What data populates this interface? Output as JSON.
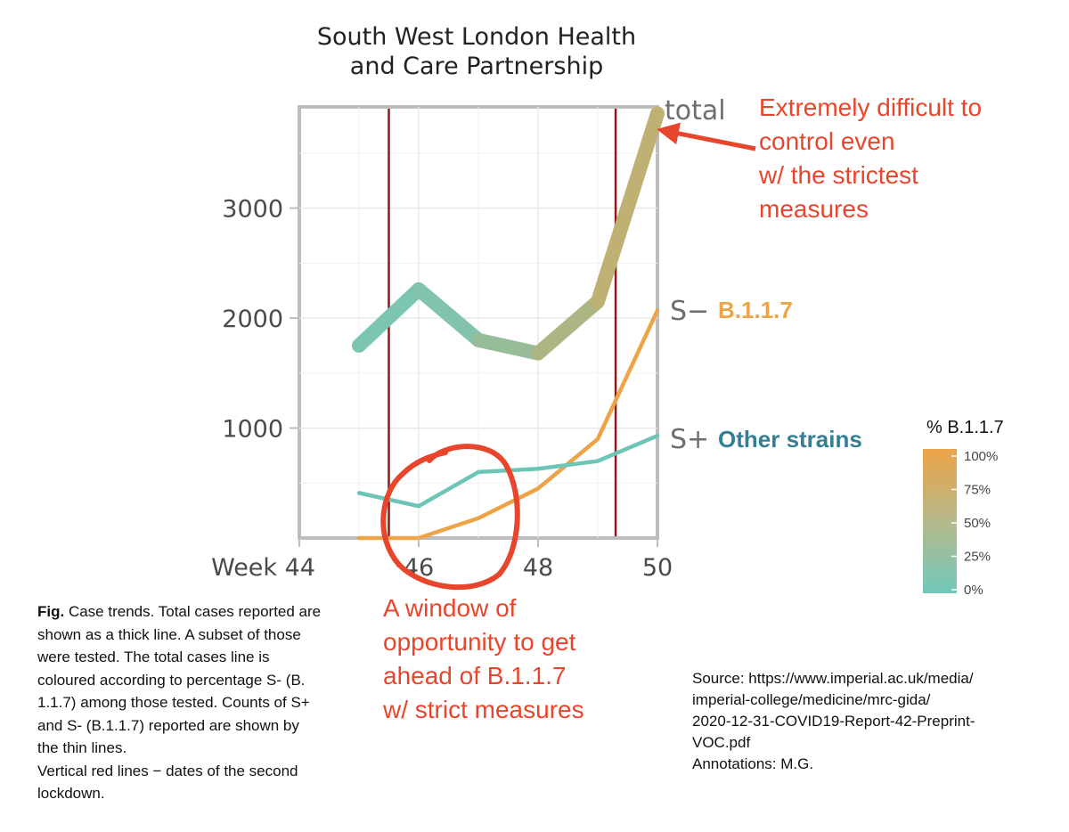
{
  "chart_data": {
    "type": "line",
    "title_lines": [
      "South West London Health",
      "and Care Partnership"
    ],
    "x": [
      45,
      46,
      47,
      48,
      49,
      50
    ],
    "x_ticks": [
      {
        "value": 44,
        "label": "Week 44"
      },
      {
        "value": 46,
        "label": "46"
      },
      {
        "value": 48,
        "label": "48"
      },
      {
        "value": 50,
        "label": "50"
      }
    ],
    "xlim": [
      44,
      50
    ],
    "y_ticks": [
      {
        "value": 1000,
        "label": "1000"
      },
      {
        "value": 2000,
        "label": "2000"
      },
      {
        "value": 3000,
        "label": "3000"
      }
    ],
    "ylim": [
      0,
      3920
    ],
    "grid": true,
    "series": [
      {
        "name": "total",
        "values": [
          1750,
          2260,
          1800,
          1680,
          2150,
          3860
        ],
        "pct_b117": [
          0.1,
          0.05,
          0.2,
          0.4,
          0.55,
          0.7
        ]
      },
      {
        "name": "S−",
        "values": [
          0,
          0,
          180,
          450,
          900,
          2070
        ],
        "color": "#eda347"
      },
      {
        "name": "S+",
        "values": [
          410,
          290,
          600,
          630,
          700,
          930
        ],
        "color": "#6cc5b6"
      }
    ],
    "lockdown_weeks": [
      45.5,
      49.3
    ],
    "legend": {
      "title": "% B.1.1.7",
      "ticks": [
        "100%",
        "75%",
        "50%",
        "25%",
        "0%"
      ],
      "color_low": "#72c8bb",
      "color_high": "#eda347",
      "placement": "right"
    }
  },
  "annotations": {
    "top_right_lines": [
      "Extremely difficult to",
      "control even",
      "w/ the strictest",
      "measures"
    ],
    "s_minus_label": "B.1.1.7",
    "s_plus_label": "Other strains",
    "window_lines": [
      "A window of",
      "opportunity to get",
      "ahead of B.1.1.7",
      "w/ strict measures"
    ]
  },
  "caption": {
    "fig_label": "Fig.",
    "line1": " Case trends. Total cases",
    "rest": "reported are shown as a thick line. A subset of those were tested. The total cases line is coloured according to percentage S- (B. 1.1.7) among those tested. Counts of S+ and S- (B.1.1.7) reported are shown by the thin lines.",
    "second": "Vertical red lines − dates of the second lockdown."
  },
  "source": {
    "lines": [
      "Source: https://www.imperial.ac.uk/media/",
      "imperial-college/medicine/mrc-gida/",
      "2020-12-31-COVID19-Report-42-Preprint-",
      "VOC.pdf",
      "Annotations: M.G."
    ]
  },
  "colors": {
    "annotation_red": "#e8462c",
    "lockdown_line": "#8b1a1a",
    "s_minus": "#eda347",
    "s_plus": "#6cc5b6",
    "other_strains_text": "#357f95"
  }
}
